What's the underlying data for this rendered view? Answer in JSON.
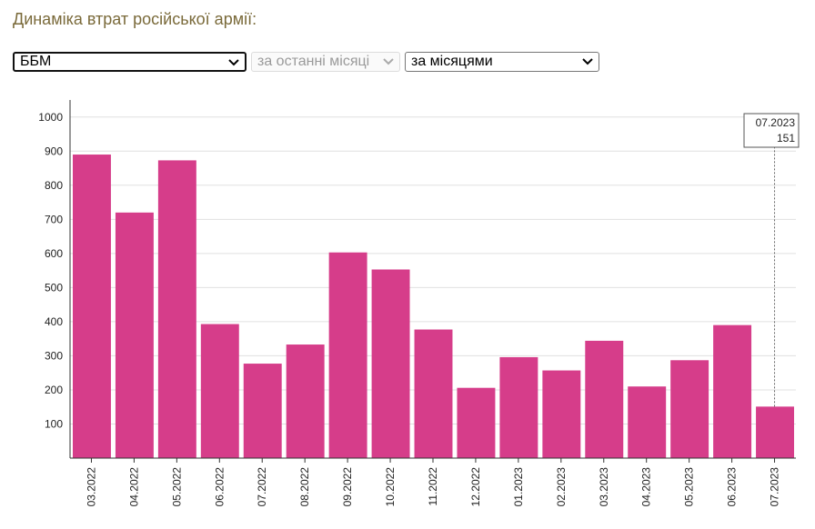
{
  "title": "Динаміка втрат російської армії:",
  "controls": {
    "metric": "ББМ",
    "period": "за останні місяці",
    "grouping": "за місяцями"
  },
  "tooltip": {
    "label": "07.2023",
    "value": "151"
  },
  "colors": {
    "bar": "#d63d8a",
    "grid": "#e0e0e0",
    "axis": "#333333",
    "title": "#7a6a3a"
  },
  "chart_data": {
    "type": "bar",
    "categories": [
      "03.2022",
      "04.2022",
      "05.2022",
      "06.2022",
      "07.2022",
      "08.2022",
      "09.2022",
      "10.2022",
      "11.2022",
      "12.2022",
      "01.2023",
      "02.2023",
      "03.2023",
      "04.2023",
      "05.2023",
      "06.2023",
      "07.2023"
    ],
    "values": [
      890,
      720,
      873,
      393,
      277,
      333,
      603,
      553,
      377,
      206,
      296,
      257,
      344,
      210,
      287,
      390,
      151
    ],
    "yticks": [
      100,
      200,
      300,
      400,
      500,
      600,
      700,
      800,
      900,
      1000
    ],
    "ylim": [
      0,
      1050
    ],
    "grid": true
  }
}
